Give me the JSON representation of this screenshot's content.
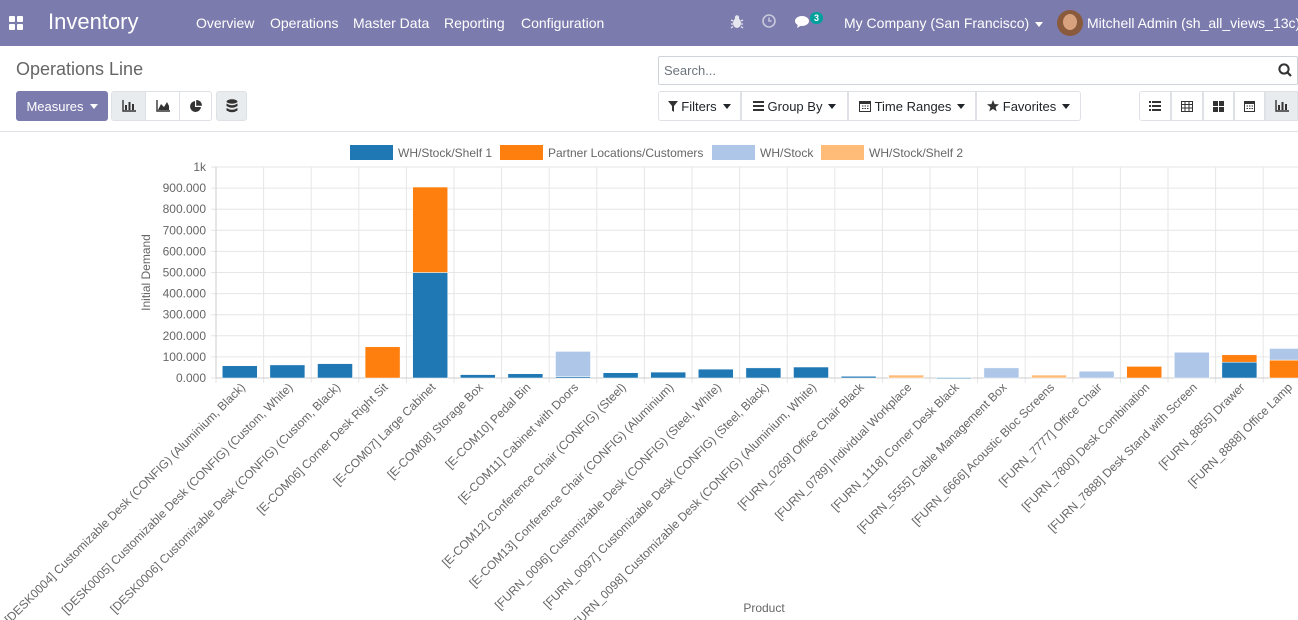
{
  "navbar": {
    "brand": "Inventory",
    "menu": [
      "Overview",
      "Operations",
      "Master Data",
      "Reporting",
      "Configuration"
    ],
    "messages_count": "3",
    "company": "My Company (San Francisco)",
    "user": "Mitchell Admin (sh_all_views_13c)"
  },
  "control_panel": {
    "title": "Operations Line",
    "search_placeholder": "Search...",
    "measures_label": "Measures",
    "filters_label": "Filters",
    "group_by_label": "Group By",
    "time_ranges_label": "Time Ranges",
    "favorites_label": "Favorites"
  },
  "chart_data": {
    "type": "bar",
    "stacked": true,
    "ylabel": "Initial Demand",
    "xlabel": "Product",
    "ylim": [
      0,
      1000000
    ],
    "y_ticks": [
      "0.000",
      "100.000",
      "200.000",
      "300.000",
      "400.000",
      "500.000",
      "600.000",
      "700.000",
      "800.000",
      "900.000",
      "1k"
    ],
    "legend_position": "top",
    "categories": [
      "[DESK0004] Customizable Desk (CONFIG) (Aluminium, Black)",
      "[DESK0005] Customizable Desk (CONFIG) (Custom, White)",
      "[DESK0006] Customizable Desk (CONFIG) (Custom, Black)",
      "[E-COM06] Corner Desk Right Sit",
      "[E-COM07] Large Cabinet",
      "[E-COM08] Storage Box",
      "[E-COM10] Pedal Bin",
      "[E-COM11] Cabinet with Doors",
      "[E-COM12] Conference Chair (CONFIG) (Steel)",
      "[E-COM13] Conference Chair (CONFIG) (Aluminium)",
      "[FURN_0096] Customizable Desk (CONFIG) (Steel, White)",
      "[FURN_0097] Customizable Desk (CONFIG) (Steel, Black)",
      "[FURN_0098] Customizable Desk (CONFIG) (Aluminium, White)",
      "[FURN_0269] Office Chair Black",
      "[FURN_0789] Individual Workplace",
      "[FURN_1118] Corner Desk Black",
      "[FURN_5555] Cable Management Box",
      "[FURN_6666] Acoustic Bloc Screens",
      "[FURN_7777] Office Chair",
      "[FURN_7800] Desk Combination",
      "[FURN_7888] Desk Stand with Screen",
      "[FURN_8855] Drawer",
      "[FURN_8888] Office Lamp"
    ],
    "series": [
      {
        "name": "WH/Stock/Shelf 1",
        "color": "#1f77b4",
        "values": [
          58000,
          62000,
          68000,
          0,
          500000,
          16000,
          20000,
          6000,
          25000,
          28000,
          42000,
          48000,
          52000,
          8000,
          0,
          2000,
          0,
          0,
          0,
          0,
          0,
          75000,
          0
        ]
      },
      {
        "name": "Partner Locations/Customers",
        "color": "#ff7f0e",
        "values": [
          0,
          0,
          0,
          148000,
          405000,
          0,
          0,
          0,
          0,
          0,
          0,
          0,
          0,
          0,
          0,
          0,
          0,
          0,
          0,
          55000,
          0,
          35000,
          85000
        ]
      },
      {
        "name": "WH/Stock",
        "color": "#aec7e8",
        "values": [
          0,
          0,
          0,
          0,
          0,
          0,
          0,
          120000,
          0,
          0,
          0,
          0,
          0,
          0,
          0,
          0,
          48000,
          0,
          32000,
          0,
          122000,
          0,
          55000
        ]
      },
      {
        "name": "WH/Stock/Shelf 2",
        "color": "#ffbb78",
        "values": [
          0,
          0,
          0,
          0,
          0,
          0,
          0,
          0,
          0,
          0,
          0,
          0,
          0,
          0,
          14000,
          0,
          0,
          14000,
          0,
          0,
          0,
          0,
          0
        ]
      }
    ]
  }
}
